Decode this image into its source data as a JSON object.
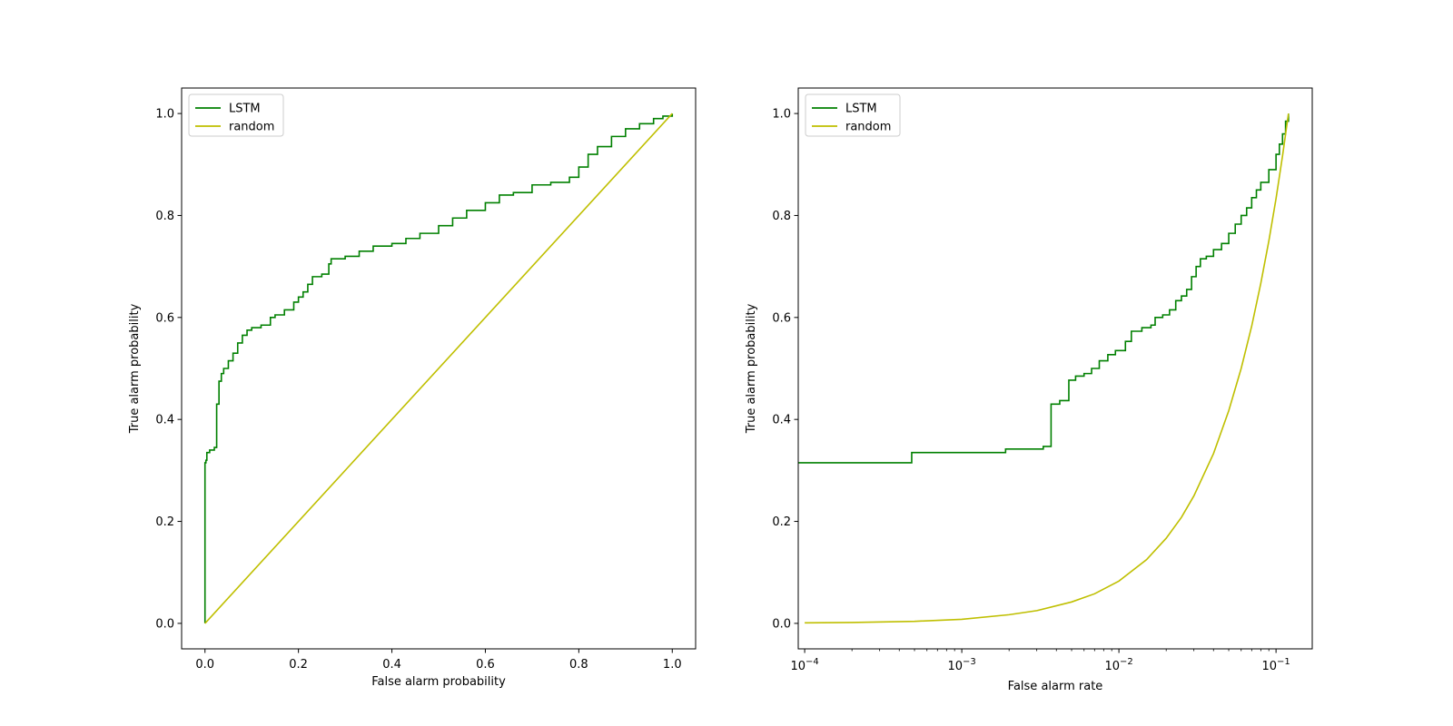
{
  "chart_data": [
    {
      "type": "line",
      "xscale": "linear",
      "xlabel": "False alarm probability",
      "ylabel": "True alarm probability",
      "xlim": [
        -0.05,
        1.05
      ],
      "ylim": [
        -0.05,
        1.05
      ],
      "xticks": [
        0.0,
        0.2,
        0.4,
        0.6,
        0.8,
        1.0
      ],
      "xtick_labels": [
        "0.0",
        "0.2",
        "0.4",
        "0.6",
        "0.8",
        "1.0"
      ],
      "yticks": [
        0.0,
        0.2,
        0.4,
        0.6,
        0.8,
        1.0
      ],
      "ytick_labels": [
        "0.0",
        "0.2",
        "0.4",
        "0.6",
        "0.8",
        "1.0"
      ],
      "grid": false,
      "legend": "top-left",
      "series": [
        {
          "name": "LSTM",
          "color": "#008000",
          "step": true,
          "x": [
            0.0,
            0.0,
            0.002,
            0.004,
            0.01,
            0.02,
            0.025,
            0.03,
            0.035,
            0.04,
            0.05,
            0.06,
            0.07,
            0.08,
            0.09,
            0.1,
            0.12,
            0.14,
            0.15,
            0.17,
            0.19,
            0.2,
            0.21,
            0.22,
            0.23,
            0.25,
            0.265,
            0.27,
            0.3,
            0.33,
            0.36,
            0.4,
            0.43,
            0.46,
            0.5,
            0.53,
            0.56,
            0.6,
            0.63,
            0.66,
            0.7,
            0.74,
            0.78,
            0.8,
            0.82,
            0.84,
            0.87,
            0.9,
            0.93,
            0.96,
            0.98,
            1.0
          ],
          "y": [
            0.0,
            0.315,
            0.32,
            0.335,
            0.34,
            0.345,
            0.43,
            0.475,
            0.49,
            0.5,
            0.515,
            0.53,
            0.55,
            0.565,
            0.575,
            0.58,
            0.585,
            0.6,
            0.605,
            0.615,
            0.63,
            0.64,
            0.65,
            0.665,
            0.68,
            0.685,
            0.705,
            0.715,
            0.72,
            0.73,
            0.74,
            0.745,
            0.755,
            0.765,
            0.78,
            0.795,
            0.81,
            0.825,
            0.84,
            0.845,
            0.86,
            0.865,
            0.875,
            0.895,
            0.92,
            0.935,
            0.955,
            0.97,
            0.98,
            0.99,
            0.995,
            1.0
          ]
        },
        {
          "name": "random",
          "color": "#bfbf00",
          "step": false,
          "x": [
            0.0,
            1.0
          ],
          "y": [
            0.0,
            1.0
          ]
        }
      ]
    },
    {
      "type": "line",
      "xscale": "log",
      "xlabel": "False alarm rate",
      "ylabel": "True alarm probability",
      "xlim": [
        9.1e-05,
        0.17
      ],
      "ylim": [
        -0.05,
        1.05
      ],
      "xticks": [
        0.0001,
        0.001,
        0.01,
        0.1
      ],
      "xtick_labels": [
        [
          "10",
          "−4"
        ],
        [
          "10",
          "−3"
        ],
        [
          "10",
          "−2"
        ],
        [
          "10",
          "−1"
        ]
      ],
      "yticks": [
        0.0,
        0.2,
        0.4,
        0.6,
        0.8,
        1.0
      ],
      "ytick_labels": [
        "0.0",
        "0.2",
        "0.4",
        "0.6",
        "0.8",
        "1.0"
      ],
      "grid": false,
      "legend": "top-left",
      "series": [
        {
          "name": "LSTM",
          "color": "#008000",
          "step": true,
          "x": [
            9.1e-05,
            0.00048,
            0.0019,
            0.0033,
            0.0037,
            0.0042,
            0.0048,
            0.0053,
            0.006,
            0.0067,
            0.0075,
            0.0085,
            0.0095,
            0.011,
            0.012,
            0.014,
            0.016,
            0.017,
            0.019,
            0.021,
            0.023,
            0.025,
            0.027,
            0.029,
            0.031,
            0.033,
            0.036,
            0.04,
            0.045,
            0.05,
            0.055,
            0.06,
            0.065,
            0.07,
            0.075,
            0.08,
            0.09,
            0.1,
            0.105,
            0.11,
            0.115,
            0.12
          ],
          "y": [
            0.315,
            0.335,
            0.342,
            0.347,
            0.43,
            0.437,
            0.477,
            0.485,
            0.49,
            0.5,
            0.515,
            0.527,
            0.535,
            0.553,
            0.573,
            0.58,
            0.585,
            0.6,
            0.605,
            0.615,
            0.633,
            0.642,
            0.655,
            0.68,
            0.7,
            0.715,
            0.72,
            0.733,
            0.745,
            0.765,
            0.783,
            0.8,
            0.815,
            0.835,
            0.85,
            0.865,
            0.89,
            0.92,
            0.94,
            0.96,
            0.985,
            1.0
          ]
        },
        {
          "name": "random",
          "color": "#bfbf00",
          "step": false,
          "x": [
            0.0001,
            0.0002,
            0.0005,
            0.001,
            0.002,
            0.003,
            0.005,
            0.007,
            0.01,
            0.015,
            0.02,
            0.025,
            0.03,
            0.04,
            0.05,
            0.06,
            0.07,
            0.08,
            0.09,
            0.1,
            0.11,
            0.12
          ],
          "y": [
            0.001,
            0.0017,
            0.004,
            0.008,
            0.017,
            0.025,
            0.042,
            0.058,
            0.083,
            0.125,
            0.167,
            0.208,
            0.25,
            0.333,
            0.417,
            0.5,
            0.583,
            0.667,
            0.75,
            0.833,
            0.917,
            1.0
          ]
        }
      ]
    }
  ]
}
